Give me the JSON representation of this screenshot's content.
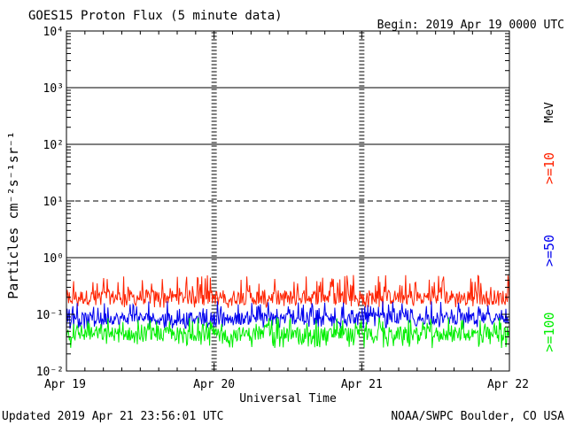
{
  "chart_data": {
    "type": "line",
    "title": "GOES15 Proton Flux (5 minute data)",
    "begin_label": "Begin: 2019 Apr 19 0000 UTC",
    "xlabel": "Universal Time",
    "ylabel": "Particles cm⁻²s⁻¹sr⁻¹",
    "x_ticks": [
      "Apr 19",
      "Apr 20",
      "Apr 21",
      "Apr 22"
    ],
    "y_ticks": [
      "10⁻²",
      "10⁻¹",
      "10⁰",
      "10¹",
      "10²",
      "10³",
      "10⁴"
    ],
    "y_scale": "log",
    "ylim": [
      0.01,
      10000
    ],
    "xlim": [
      "2019-04-19",
      "2019-04-22"
    ],
    "thresholds": [
      {
        "value": 1,
        "style": "solid"
      },
      {
        "value": 10,
        "style": "dashed"
      },
      {
        "value": 100,
        "style": "solid"
      },
      {
        "value": 1000,
        "style": "solid"
      }
    ],
    "unit_label": "MeV",
    "series": [
      {
        "name": ">=10",
        "color": "#ff2200",
        "base": 0.2,
        "low": 0.13,
        "high": 0.5
      },
      {
        "name": ">=50",
        "color": "#0000ee",
        "base": 0.085,
        "low": 0.055,
        "high": 0.17
      },
      {
        "name": ">=100",
        "color": "#00ee00",
        "base": 0.045,
        "low": 0.025,
        "high": 0.09
      }
    ]
  },
  "footer": {
    "updated": "Updated 2019 Apr 21 23:56:01 UTC",
    "credit": "NOAA/SWPC Boulder, CO USA"
  }
}
